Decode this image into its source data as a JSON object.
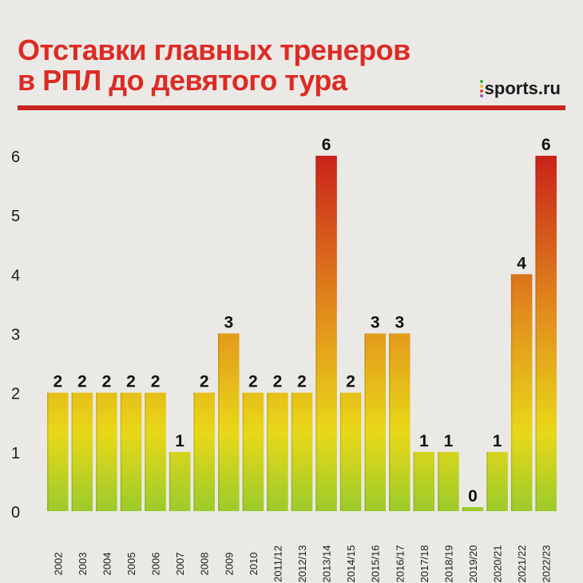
{
  "header": {
    "title_line1": "Отставки главных тренеров",
    "title_line2": "в РПЛ до девятого тура",
    "brand": "sports.ru",
    "brand_icon": "sports-ru-dots-icon"
  },
  "colors": {
    "title": "#dc2b23",
    "rule": "#c8231c",
    "bar_low": "#9ccb2b",
    "bar_mid": "#e8d818",
    "bar_high": "#e28f1c",
    "bar_top": "#c9221a",
    "brand_dots": [
      "#2fb34a",
      "#e6c12a",
      "#e4472e",
      "#9b59b6"
    ]
  },
  "chart_data": {
    "type": "bar",
    "categories": [
      "2002",
      "2003",
      "2004",
      "2005",
      "2006",
      "2007",
      "2008",
      "2009",
      "2010",
      "2011/12",
      "2012/13",
      "2013/14",
      "2014/15",
      "2015/16",
      "2016/17",
      "2017/18",
      "2018/19",
      "2019/20",
      "2020/21",
      "2021/22",
      "2022/23"
    ],
    "values": [
      2,
      2,
      2,
      2,
      2,
      1,
      2,
      3,
      2,
      2,
      2,
      6,
      2,
      3,
      3,
      1,
      1,
      0,
      1,
      4,
      6
    ],
    "data_labels": [
      "2",
      "2",
      "2",
      "2",
      "2",
      "1",
      "2",
      "3",
      "2",
      "2",
      "2",
      "6",
      "2",
      "3",
      "3",
      "1",
      "1",
      "0",
      "1",
      "4",
      "6"
    ],
    "y_ticks": [
      "0",
      "1",
      "2",
      "3",
      "4",
      "5",
      "6"
    ],
    "ylim": [
      0,
      6
    ],
    "grid": false,
    "legend": "none"
  }
}
